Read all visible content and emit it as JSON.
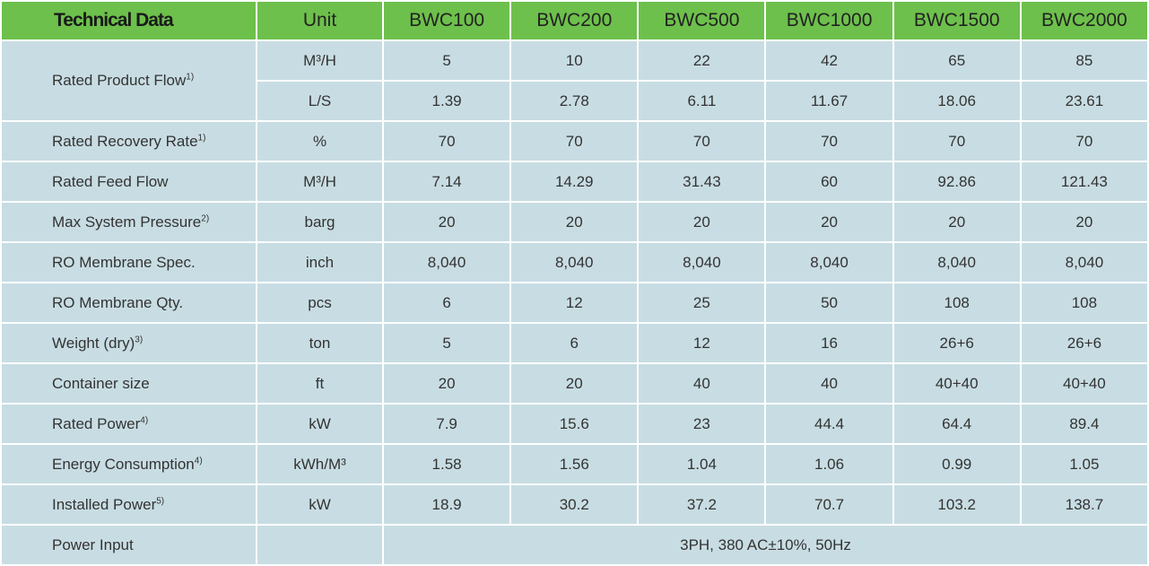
{
  "table": {
    "header": [
      "Technical Data",
      "Unit",
      "BWC100",
      "BWC200",
      "BWC500",
      "BWC1000",
      "BWC1500",
      "BWC2000"
    ],
    "rows": [
      {
        "label": "Rated Product Flow",
        "note": "1)",
        "lines": [
          {
            "unit": "M³/H",
            "values": [
              5,
              10,
              22,
              42,
              65,
              85
            ]
          },
          {
            "unit": "L/S",
            "values": [
              1.39,
              2.78,
              6.11,
              11.67,
              18.06,
              23.61
            ]
          }
        ]
      },
      {
        "label": "Rated Recovery Rate",
        "note": "1)",
        "lines": [
          {
            "unit": "%",
            "values": [
              70,
              70,
              70,
              70,
              70,
              70
            ]
          }
        ]
      },
      {
        "label": "Rated Feed Flow",
        "lines": [
          {
            "unit": "M³/H",
            "values": [
              7.14,
              14.29,
              31.43,
              60,
              92.86,
              121.43
            ]
          }
        ]
      },
      {
        "label": "Max System Pressure",
        "note": "2)",
        "lines": [
          {
            "unit": "barg",
            "values": [
              20,
              20,
              20,
              20,
              20,
              20
            ]
          }
        ]
      },
      {
        "label": "RO Membrane Spec.",
        "lines": [
          {
            "unit": "inch",
            "values": [
              "8,040",
              "8,040",
              "8,040",
              "8,040",
              "8,040",
              "8,040"
            ]
          }
        ]
      },
      {
        "label": "RO Membrane Qty.",
        "lines": [
          {
            "unit": "pcs",
            "values": [
              6,
              12,
              25,
              50,
              108,
              108
            ]
          }
        ]
      },
      {
        "label": "Weight (dry)",
        "note": "3)",
        "lines": [
          {
            "unit": "ton",
            "values": [
              5,
              6,
              12,
              16,
              "26+6",
              "26+6"
            ]
          }
        ]
      },
      {
        "label": "Container size",
        "lines": [
          {
            "unit": "ft",
            "values": [
              20,
              20,
              40,
              40,
              "40+40",
              "40+40"
            ]
          }
        ]
      },
      {
        "label": "Rated Power",
        "note": "4)",
        "lines": [
          {
            "unit": "kW",
            "values": [
              7.9,
              15.6,
              23,
              44.4,
              64.4,
              89.4
            ]
          }
        ]
      },
      {
        "label": "Energy Consumption",
        "note": "4)",
        "lines": [
          {
            "unit": "kWh/M³",
            "values": [
              1.58,
              1.56,
              1.04,
              1.06,
              0.99,
              1.05
            ]
          }
        ]
      },
      {
        "label": "Installed Power",
        "note": "5)",
        "lines": [
          {
            "unit": "kW",
            "values": [
              18.9,
              30.2,
              37.2,
              70.7,
              103.2,
              138.7
            ]
          }
        ]
      },
      {
        "label": "Power Input",
        "value": "3PH, 380 AC±10%, 50Hz"
      }
    ]
  }
}
